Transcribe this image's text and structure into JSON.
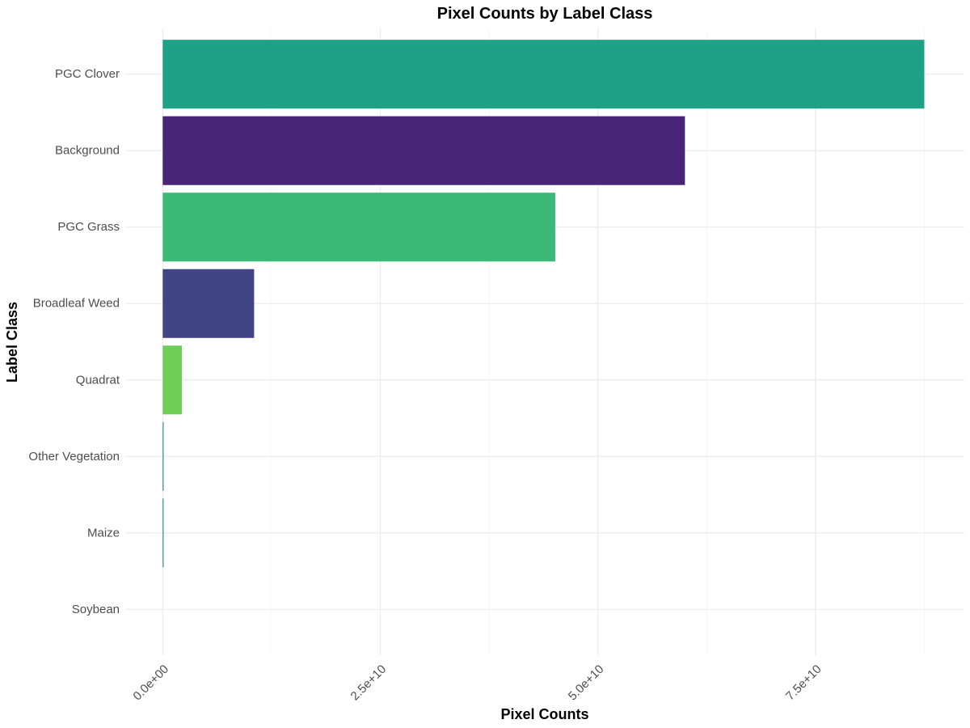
{
  "chart_data": {
    "type": "bar",
    "orientation": "horizontal",
    "title": "Pixel Counts by Label Class",
    "xlabel": "Pixel Counts",
    "ylabel": "Label Class",
    "categories": [
      "PGC Clover",
      "Background",
      "PGC Grass",
      "Broadleaf Weed",
      "Quadrat",
      "Other Vegetation",
      "Maize",
      "Soybean"
    ],
    "values": [
      87500000000,
      60000000000,
      45100000000,
      10500000000,
      2200000000,
      100000000,
      100000000,
      0
    ],
    "colors": [
      "#1fa187",
      "#482576",
      "#3bb977",
      "#414487",
      "#6ece58",
      "#2a788e",
      "#2a788e",
      "#fde725"
    ],
    "xlim": [
      -4300000000,
      92100000000
    ],
    "xticks": [
      0,
      25000000000,
      50000000000,
      75000000000
    ],
    "xtick_labels": [
      "0.0e+00",
      "2.5e+10",
      "5.0e+10",
      "7.5e+10"
    ],
    "grid": true,
    "legend": "none"
  }
}
